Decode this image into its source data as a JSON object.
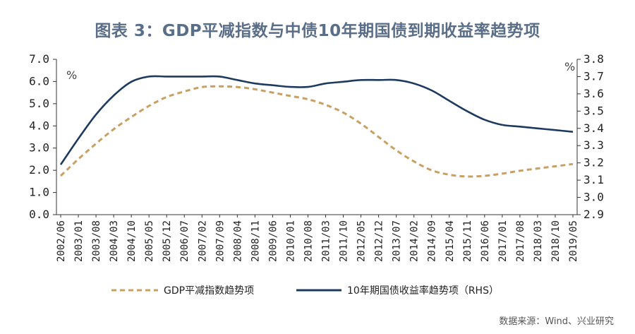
{
  "title": "图表 3：GDP平减指数与中债10年期国债到期收益率趋势项",
  "source": "数据来源：Wind、兴业研究",
  "colors": {
    "gdp": "#c8a064",
    "bond": "#1e3a5f",
    "axis": "#333333"
  },
  "chart_data": {
    "type": "line",
    "title": "图表 3：GDP平减指数与中债10年期国债到期收益率趋势项",
    "x_ticks": [
      "2002/06",
      "2003/01",
      "2003/08",
      "2004/03",
      "2004/10",
      "2005/05",
      "2005/12",
      "2006/07",
      "2007/02",
      "2007/09",
      "2008/04",
      "2008/11",
      "2009/06",
      "2010/01",
      "2010/08",
      "2011/03",
      "2011/10",
      "2012/05",
      "2012/12",
      "2013/07",
      "2014/02",
      "2014/09",
      "2015/04",
      "2015/11",
      "2016/06",
      "2017/01",
      "2017/08",
      "2018/03",
      "2018/10",
      "2019/05"
    ],
    "left_axis": {
      "unit": "%",
      "ticks": [
        "0.0",
        "1.0",
        "2.0",
        "3.0",
        "4.0",
        "5.0",
        "6.0",
        "7.0"
      ],
      "range": [
        0,
        7
      ]
    },
    "right_axis": {
      "unit": "%",
      "ticks": [
        "2.9",
        "3.0",
        "3.1",
        "3.2",
        "3.3",
        "3.4",
        "3.5",
        "3.6",
        "3.7",
        "3.8"
      ],
      "range": [
        2.9,
        3.8
      ]
    },
    "series": [
      {
        "name": "GDP平减指数趋势项",
        "axis": "left",
        "style": "dashed",
        "values": [
          1.75,
          2.5,
          3.2,
          3.85,
          4.4,
          4.9,
          5.3,
          5.55,
          5.75,
          5.78,
          5.75,
          5.65,
          5.5,
          5.35,
          5.2,
          4.95,
          4.6,
          4.1,
          3.5,
          2.9,
          2.4,
          2.0,
          1.8,
          1.72,
          1.75,
          1.85,
          1.98,
          2.08,
          2.18,
          2.28
        ]
      },
      {
        "name": "10年期国债收益率趋势项（RHS）",
        "axis": "right",
        "style": "solid",
        "values": [
          3.19,
          3.34,
          3.48,
          3.59,
          3.67,
          3.7,
          3.7,
          3.7,
          3.7,
          3.7,
          3.68,
          3.66,
          3.65,
          3.64,
          3.64,
          3.66,
          3.67,
          3.68,
          3.68,
          3.68,
          3.66,
          3.62,
          3.56,
          3.5,
          3.45,
          3.42,
          3.41,
          3.4,
          3.39,
          3.38
        ]
      }
    ],
    "legend": {
      "position": "bottom",
      "entries": [
        "GDP平减指数趋势项",
        "10年期国债收益率趋势项（RHS）"
      ]
    }
  }
}
